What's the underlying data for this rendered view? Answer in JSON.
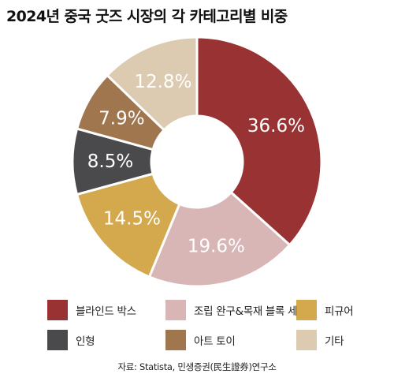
{
  "chart_data": {
    "type": "pie",
    "donut": true,
    "title": "2024년 중국 굿즈 시장의 각 카테고리별 비중",
    "unit": "%",
    "slices": [
      {
        "label": "블라인드 박스",
        "value": 36.6,
        "display": "36.6%",
        "color": "#993333"
      },
      {
        "label": "조립 완구&목재 블록 세트",
        "value": 19.6,
        "display": "19.6%",
        "color": "#d9b6b6"
      },
      {
        "label": "피규어",
        "value": 14.5,
        "display": "14.5%",
        "color": "#d4a94e"
      },
      {
        "label": "인형",
        "value": 8.5,
        "display": "8.5%",
        "color": "#4a4a4d"
      },
      {
        "label": "아트 토이",
        "value": 7.9,
        "display": "7.9%",
        "color": "#a0764f"
      },
      {
        "label": "기타",
        "value": 12.8,
        "display": "12.8%",
        "color": "#dccbb1"
      }
    ],
    "legend_order": [
      "블라인드 박스",
      "조립 완구&목재 블록 세트",
      "피규어",
      "인형",
      "아트 토이",
      "기타"
    ],
    "legend_position": "bottom"
  },
  "source": "자료: Statista, 민생증권(民生證券)연구소"
}
